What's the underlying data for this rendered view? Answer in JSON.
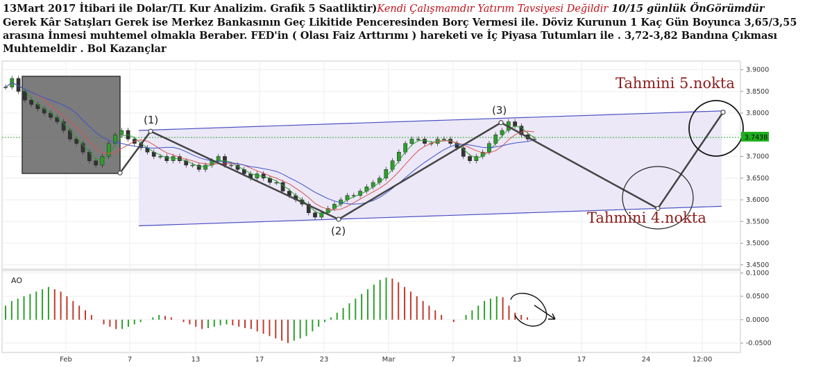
{
  "caption": {
    "part1": "13Mart 2017 İtibari ile Dolar/TL Kur Analizim. Grafik 5 Saatliktir)",
    "part2": "Kendi Çalışmamdır Yatırım Tavsiyesi Değildir",
    "part3": " 10/15 günlük ÖnGörümdür",
    "part4": "Gerek Kâr Satışları Gerek ise Merkez Bankasının Geç Likitide Penceresinden Borç Vermesi ile. Döviz Kurunun 1 Kaç Gün Boyunca 3,65/3,55 arasına İnmesi muhtemel olmakla Beraber. FED'in ( Olası Faiz Arttırımı ) hareketi ve İç Piyasa Tutumları ile . 3,72-3,82  Bandına Çıkması Muhtemeldir . Bol Kazançlar"
  },
  "chart_data": [
    {
      "type": "candlestick",
      "title": "",
      "x_ticks": [
        "Feb",
        "7",
        "13",
        "17",
        "23",
        "Mar",
        "7",
        "13",
        "17",
        "24",
        "12:00"
      ],
      "y_ticks": [
        "3.9000",
        "3.8500",
        "3.8000",
        "3.7500",
        "3.7000",
        "3.6500",
        "3.6000",
        "3.5500",
        "3.5000",
        "3.4500"
      ],
      "ylim": [
        3.44,
        3.92
      ],
      "last_price_label": "3.7438",
      "last_price": 3.7438,
      "close_series_approx": [
        3.86,
        3.88,
        3.85,
        3.83,
        3.82,
        3.81,
        3.8,
        3.79,
        3.78,
        3.76,
        3.74,
        3.73,
        3.71,
        3.69,
        3.68,
        3.7,
        3.73,
        3.75,
        3.76,
        3.74,
        3.73,
        3.72,
        3.71,
        3.7,
        3.7,
        3.69,
        3.7,
        3.69,
        3.68,
        3.68,
        3.67,
        3.68,
        3.69,
        3.7,
        3.68,
        3.68,
        3.67,
        3.66,
        3.65,
        3.66,
        3.65,
        3.64,
        3.64,
        3.62,
        3.61,
        3.6,
        3.59,
        3.57,
        3.56,
        3.57,
        3.58,
        3.59,
        3.6,
        3.61,
        3.61,
        3.62,
        3.63,
        3.64,
        3.65,
        3.67,
        3.69,
        3.71,
        3.73,
        3.74,
        3.74,
        3.73,
        3.73,
        3.74,
        3.74,
        3.73,
        3.72,
        3.7,
        3.69,
        3.7,
        3.71,
        3.73,
        3.75,
        3.76,
        3.78,
        3.77,
        3.75,
        3.74,
        3.74
      ],
      "channel": {
        "upper": [
          {
            "x": "7",
            "y": 3.76
          },
          {
            "x": "12:00",
            "y": 3.805
          }
        ],
        "lower": [
          {
            "x": "7",
            "y": 3.54
          },
          {
            "x": "12:00",
            "y": 3.585
          }
        ]
      },
      "points": [
        {
          "label": "(1)",
          "x_between": "7",
          "y": 3.758
        },
        {
          "label": "(2)",
          "x_between": "23",
          "y": 3.555
        },
        {
          "label": "(3)",
          "x_between": "Mar-13",
          "y": 3.778
        },
        {
          "label": "Tahmini 4.nokta",
          "x_between": "24",
          "y": 3.58
        },
        {
          "label": "Tahmini 5.nokta",
          "x_between": "12:00",
          "y": 3.802
        }
      ],
      "annotations": [
        "(1)",
        "(2)",
        "(3)",
        "Tahmini 4.nokta",
        "Tahmini 5.nokta"
      ],
      "colors": {
        "channel": "#4a4fc4",
        "channel_fill": "#ece8f7",
        "price_line": "#2ea62e",
        "label_bg": "#1fae1f",
        "annotation": "#8b1a1a",
        "box": "#6b6b6b"
      }
    },
    {
      "type": "bar",
      "title": "AO",
      "y_ticks": [
        "0.1000",
        "0.0500",
        "0.0000",
        "-0.0500"
      ],
      "ylim": [
        -0.07,
        0.105
      ],
      "values_approx": [
        0.03,
        0.04,
        0.045,
        0.05,
        0.055,
        0.06,
        0.065,
        0.07,
        0.065,
        0.06,
        0.05,
        0.04,
        0.03,
        0.02,
        0.01,
        0.0,
        -0.01,
        -0.015,
        -0.02,
        -0.02,
        -0.015,
        -0.01,
        -0.005,
        0.0,
        0.005,
        0.01,
        0.008,
        0.005,
        0.0,
        -0.005,
        -0.01,
        -0.015,
        -0.02,
        -0.018,
        -0.015,
        -0.012,
        -0.01,
        -0.012,
        -0.015,
        -0.018,
        -0.02,
        -0.025,
        -0.03,
        -0.035,
        -0.04,
        -0.045,
        -0.05,
        -0.045,
        -0.04,
        -0.035,
        -0.025,
        -0.015,
        -0.005,
        0.005,
        0.015,
        0.025,
        0.035,
        0.045,
        0.055,
        0.065,
        0.075,
        0.085,
        0.09,
        0.088,
        0.08,
        0.07,
        0.06,
        0.05,
        0.04,
        0.03,
        0.02,
        0.01,
        0.0,
        -0.005,
        0.0,
        0.01,
        0.02,
        0.03,
        0.04,
        0.045,
        0.05,
        0.048,
        0.03,
        0.015,
        0.01,
        0.005
      ],
      "colors": {
        "up": "#2e9e2e",
        "down": "#c0392b"
      }
    }
  ]
}
